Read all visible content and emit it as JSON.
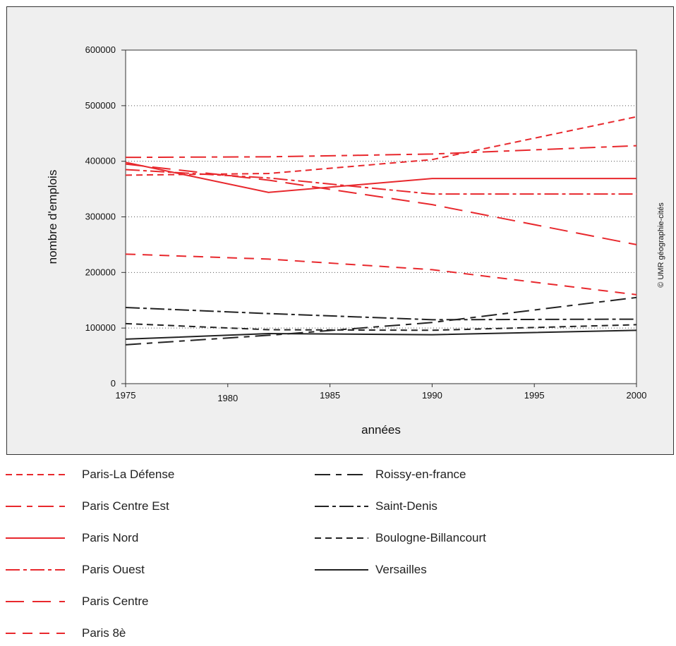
{
  "chart_data": {
    "type": "line",
    "title": "",
    "xlabel": "années",
    "ylabel": "nombre d'emplois",
    "xlim": [
      1975,
      2000
    ],
    "ylim": [
      0,
      600000
    ],
    "x_ticks": [
      "1975",
      "1980",
      "1985",
      "1990",
      "1995",
      "2000"
    ],
    "y_ticks": [
      "0",
      "100000",
      "200000",
      "300000",
      "400000",
      "500000",
      "600000"
    ],
    "grid": "horizontal dotted",
    "legend_position": "bottom",
    "series": [
      {
        "name": "Paris-La Défense",
        "color": "#e8282d",
        "dash": "short-dash",
        "x": [
          1975,
          1982,
          1990,
          2000
        ],
        "y": [
          375000,
          378000,
          403000,
          480000
        ]
      },
      {
        "name": "Paris Centre Est",
        "color": "#e8282d",
        "dash": "long-dash-dash",
        "x": [
          1975,
          1982,
          1990,
          2000
        ],
        "y": [
          407000,
          408000,
          413000,
          428000
        ]
      },
      {
        "name": "Paris Nord",
        "color": "#e8282d",
        "dash": "solid",
        "x": [
          1975,
          1982,
          1990,
          2000
        ],
        "y": [
          398000,
          344000,
          369000,
          369000
        ]
      },
      {
        "name": "Paris Ouest",
        "color": "#e8282d",
        "dash": "dash-dot",
        "x": [
          1975,
          1982,
          1990,
          2000
        ],
        "y": [
          385000,
          370000,
          341000,
          341000
        ]
      },
      {
        "name": "Paris Centre",
        "color": "#e8282d",
        "dash": "long-dash",
        "x": [
          1975,
          1982,
          1990,
          2000
        ],
        "y": [
          395000,
          366000,
          322000,
          250000
        ]
      },
      {
        "name": "Paris 8è",
        "color": "#e8282d",
        "dash": "medium-dash",
        "x": [
          1975,
          1982,
          1990,
          2000
        ],
        "y": [
          233000,
          224000,
          205000,
          160000
        ]
      },
      {
        "name": "Roissy-en-france",
        "color": "#222222",
        "dash": "long-dash-dash",
        "x": [
          1975,
          1982,
          1990,
          2000
        ],
        "y": [
          70000,
          87000,
          110000,
          155000
        ]
      },
      {
        "name": "Saint-Denis",
        "color": "#222222",
        "dash": "dash-dot",
        "x": [
          1975,
          1982,
          1990,
          2000
        ],
        "y": [
          137000,
          126000,
          115000,
          116000
        ]
      },
      {
        "name": "Boulogne-Billancourt",
        "color": "#222222",
        "dash": "short-dash",
        "x": [
          1975,
          1982,
          1990,
          2000
        ],
        "y": [
          108000,
          97000,
          96000,
          106000
        ]
      },
      {
        "name": "Versailles",
        "color": "#222222",
        "dash": "solid",
        "x": [
          1975,
          1982,
          1990,
          2000
        ],
        "y": [
          80000,
          90000,
          88000,
          96000
        ]
      }
    ]
  },
  "copyright": "© UMR géographie-cités"
}
